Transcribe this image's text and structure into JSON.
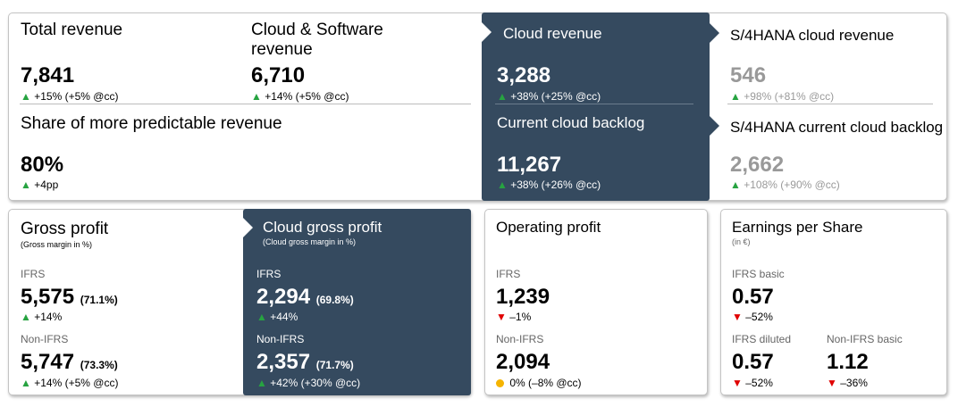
{
  "revenue_card": {
    "total_revenue": {
      "title": "Total revenue",
      "value": "7,841",
      "arrow": "▲",
      "delta": "+15% (+5% @cc)"
    },
    "cloud_software_revenue": {
      "title_line1": "Cloud & Software",
      "title_line2": "revenue",
      "value": "6,710",
      "arrow": "▲",
      "delta": "+14% (+5% @cc)"
    },
    "share_predictable": {
      "title": "Share of more predictable revenue",
      "value": "80%",
      "arrow": "▲",
      "delta": "+4pp"
    },
    "cloud_revenue": {
      "title": "Cloud revenue",
      "value": "3,288",
      "arrow": "▲",
      "delta": "+38% (+25% @cc)"
    },
    "current_cloud_backlog": {
      "title": "Current cloud backlog",
      "value": "11,267",
      "arrow": "▲",
      "delta": "+38% (+26% @cc)"
    },
    "s4hana_cloud_revenue": {
      "title": "S/4HANA cloud revenue",
      "value": "546",
      "arrow": "▲",
      "delta": "+98% (+81% @cc)"
    },
    "s4hana_current_cloud_backlog": {
      "title": "S/4HANA current cloud backlog",
      "value": "2,662",
      "arrow": "▲",
      "delta": "+108% (+90% @cc)"
    }
  },
  "gross_profit": {
    "title": "Gross profit",
    "subtitle": "(Gross margin in %)",
    "ifrs_label": "IFRS",
    "ifrs_value": "5,575",
    "ifrs_margin": "(71.1%)",
    "ifrs_arrow": "▲",
    "ifrs_delta": "+14%",
    "nonifrs_label": "Non-IFRS",
    "nonifrs_value": "5,747",
    "nonifrs_margin": "(73.3%)",
    "nonifrs_arrow": "▲",
    "nonifrs_delta": "+14% (+5% @cc)"
  },
  "cloud_gross_profit": {
    "title": "Cloud gross profit",
    "subtitle": "(Cloud gross margin in %)",
    "ifrs_label": "IFRS",
    "ifrs_value": "2,294",
    "ifrs_margin": "(69.8%)",
    "ifrs_arrow": "▲",
    "ifrs_delta": "+44%",
    "nonifrs_label": "Non-IFRS",
    "nonifrs_value": "2,357",
    "nonifrs_margin": "(71.7%)",
    "nonifrs_arrow": "▲",
    "nonifrs_delta": "+42% (+30% @cc)"
  },
  "operating_profit": {
    "title": "Operating profit",
    "ifrs_label": "IFRS",
    "ifrs_value": "1,239",
    "ifrs_arrow": "▼",
    "ifrs_delta": "–1%",
    "nonifrs_label": "Non-IFRS",
    "nonifrs_value": "2,094",
    "nonifrs_delta": "0% (–8% @cc)"
  },
  "eps": {
    "title": "Earnings per Share",
    "subtitle": "(in €)",
    "ifrs_basic_label": "IFRS basic",
    "ifrs_basic_value": "0.57",
    "ifrs_basic_arrow": "▼",
    "ifrs_basic_delta": "–52%",
    "ifrs_diluted_label": "IFRS diluted",
    "ifrs_diluted_value": "0.57",
    "ifrs_diluted_arrow": "▼",
    "ifrs_diluted_delta": "–52%",
    "nonifrs_basic_label": "Non-IFRS basic",
    "nonifrs_basic_value": "1.12",
    "nonifrs_basic_arrow": "▼",
    "nonifrs_basic_delta": "–36%"
  },
  "colors": {
    "dark_panel": "#354a5f",
    "positive": "#27a341",
    "negative": "#e00000",
    "neutral": "#f5b400",
    "muted": "#999999"
  }
}
